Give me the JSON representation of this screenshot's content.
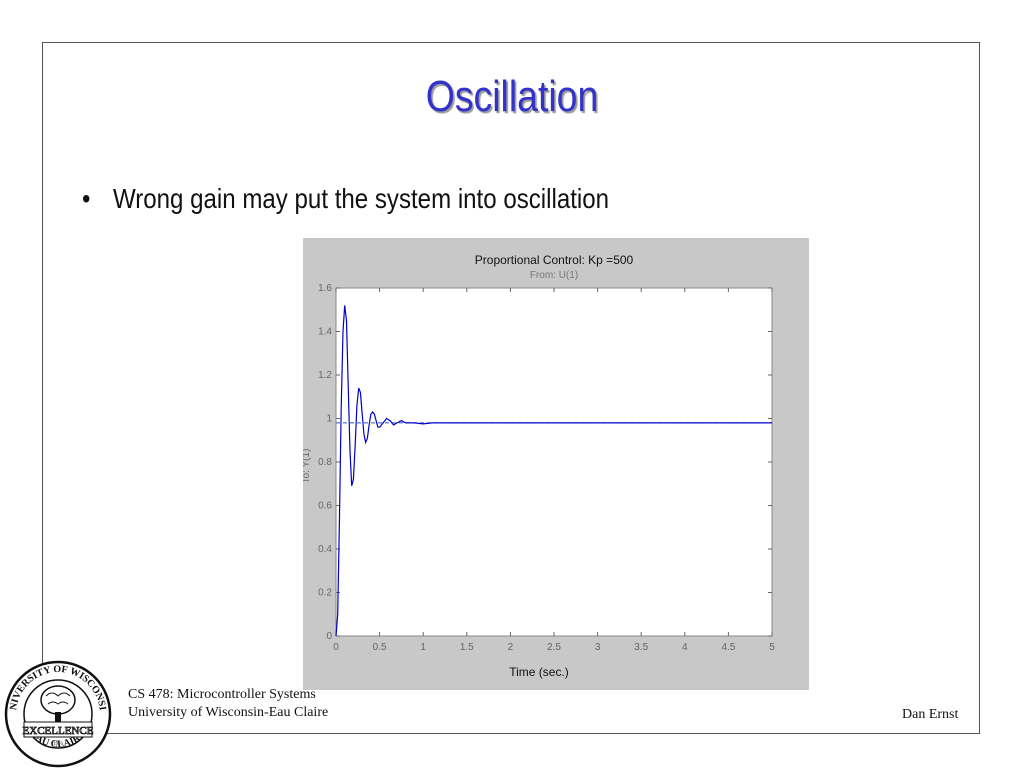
{
  "slide": {
    "title": "Oscillation",
    "bullet_symbol": "•",
    "bullet_text": "Wrong gain may put the system into oscillation"
  },
  "footer": {
    "course": "CS 478: Microcontroller Systems",
    "university": "University of Wisconsin-Eau Claire",
    "author": "Dan Ernst"
  },
  "seal": {
    "top_text": "UNIVERSITY OF WISCONSIN",
    "center_text": "EXCELLENCE",
    "bottom_text": "EAU CLAIRE",
    "year": "1916"
  },
  "chart_data": {
    "type": "line",
    "title": "Proportional Control: Kp =500",
    "subtitle": "From: U(1)",
    "xlabel": "Time (sec.)",
    "ylabel": "To: Y(1)",
    "xlim": [
      0,
      5
    ],
    "ylim": [
      0,
      1.6
    ],
    "xticks": [
      "0",
      "0.5",
      "1",
      "1.5",
      "2",
      "2.5",
      "3",
      "3.5",
      "4",
      "4.5",
      "5"
    ],
    "yticks": [
      "0",
      "0.2",
      "0.4",
      "0.6",
      "0.8",
      "1",
      "1.2",
      "1.4",
      "1.6"
    ],
    "reference_line": 0.98,
    "series": [
      {
        "color": "#0000cc",
        "x": [
          0,
          0.02,
          0.04,
          0.06,
          0.08,
          0.1,
          0.12,
          0.14,
          0.16,
          0.18,
          0.2,
          0.22,
          0.24,
          0.26,
          0.28,
          0.3,
          0.32,
          0.34,
          0.36,
          0.38,
          0.4,
          0.42,
          0.44,
          0.46,
          0.48,
          0.5,
          0.54,
          0.58,
          0.62,
          0.66,
          0.7,
          0.75,
          0.8,
          0.9,
          1.0,
          1.1,
          1.2,
          1.3,
          1.4,
          1.5,
          2.0,
          3.0,
          4.0,
          5.0
        ],
        "y": [
          0,
          0.1,
          0.55,
          1.05,
          1.4,
          1.52,
          1.45,
          1.15,
          0.85,
          0.69,
          0.72,
          0.88,
          1.06,
          1.14,
          1.12,
          1.02,
          0.93,
          0.89,
          0.91,
          0.97,
          1.02,
          1.03,
          1.02,
          0.99,
          0.96,
          0.96,
          0.98,
          1.0,
          0.99,
          0.97,
          0.98,
          0.99,
          0.98,
          0.98,
          0.975,
          0.98,
          0.98,
          0.98,
          0.98,
          0.98,
          0.98,
          0.98,
          0.98,
          0.98
        ]
      }
    ]
  }
}
